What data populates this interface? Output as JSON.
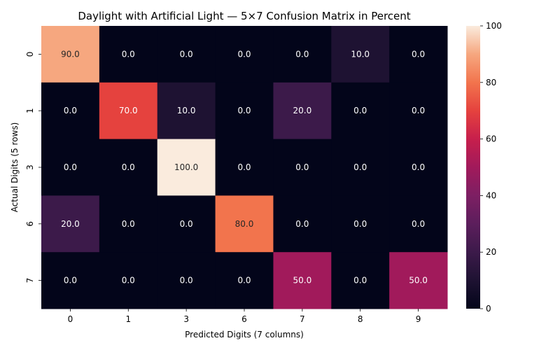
{
  "chart_data": {
    "type": "heatmap",
    "title": "Daylight with Artificial Light — 5×7 Confusion Matrix in Percent",
    "xlabel": "Predicted Digits (7 columns)",
    "ylabel": "Actual Digits (5 rows)",
    "x_categories": [
      "0",
      "1",
      "3",
      "6",
      "7",
      "8",
      "9"
    ],
    "y_categories": [
      "0",
      "1",
      "3",
      "6",
      "7"
    ],
    "values": [
      [
        90.0,
        0.0,
        0.0,
        0.0,
        0.0,
        10.0,
        0.0
      ],
      [
        0.0,
        70.0,
        10.0,
        0.0,
        20.0,
        0.0,
        0.0
      ],
      [
        0.0,
        0.0,
        100.0,
        0.0,
        0.0,
        0.0,
        0.0
      ],
      [
        20.0,
        0.0,
        0.0,
        80.0,
        0.0,
        0.0,
        0.0
      ],
      [
        0.0,
        0.0,
        0.0,
        0.0,
        50.0,
        0.0,
        50.0
      ]
    ],
    "cell_labels": [
      [
        "90.0",
        "0.0",
        "0.0",
        "0.0",
        "0.0",
        "10.0",
        "0.0"
      ],
      [
        "0.0",
        "70.0",
        "10.0",
        "0.0",
        "20.0",
        "0.0",
        "0.0"
      ],
      [
        "0.0",
        "0.0",
        "100.0",
        "0.0",
        "0.0",
        "0.0",
        "0.0"
      ],
      [
        "20.0",
        "0.0",
        "0.0",
        "80.0",
        "0.0",
        "0.0",
        "0.0"
      ],
      [
        "0.0",
        "0.0",
        "0.0",
        "0.0",
        "50.0",
        "0.0",
        "50.0"
      ]
    ],
    "colorbar": {
      "range": [
        0,
        100
      ],
      "ticks": [
        "0",
        "20",
        "40",
        "60",
        "80",
        "100"
      ],
      "colormap": "rocket"
    }
  }
}
